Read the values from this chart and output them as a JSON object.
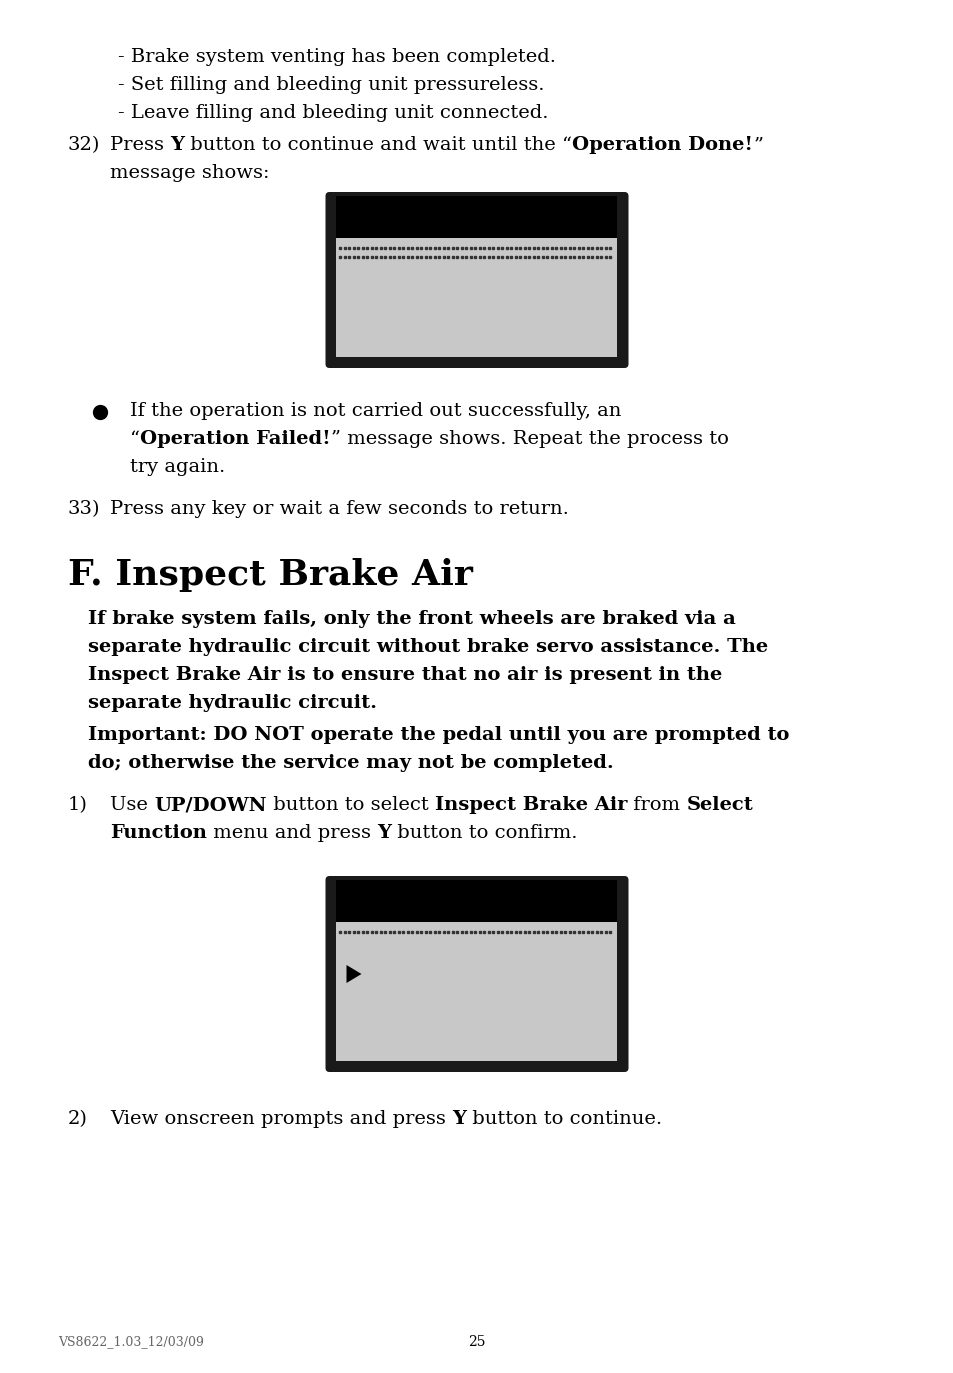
{
  "bg_color": "#ffffff",
  "text_color": "#000000",
  "lines_top": [
    "- Brake system venting has been completed.",
    "- Set filling and bleeding unit pressureless.",
    "- Leave filling and bleeding unit connected."
  ],
  "footer_left": "VS8622_1.03_12/03/09",
  "footer_page": "25",
  "screen_bg": "#c8c8c8",
  "screen_border": "#1a1a1a",
  "screen_top_bar": "#000000"
}
